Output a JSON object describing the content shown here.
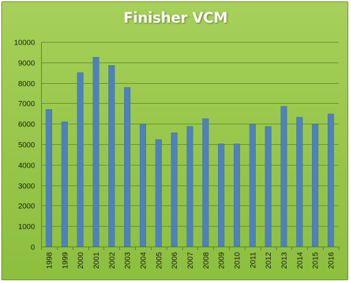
{
  "chart_data": {
    "type": "bar",
    "title": "Finisher VCM",
    "xlabel": "",
    "ylabel": "",
    "ylim": [
      0,
      10000
    ],
    "yticks": [
      0,
      1000,
      2000,
      3000,
      4000,
      5000,
      6000,
      7000,
      8000,
      9000,
      10000
    ],
    "grid": true,
    "legend": "none",
    "categories": [
      "1998",
      "1999",
      "2000",
      "2001",
      "2002",
      "2003",
      "2004",
      "2005",
      "2006",
      "2007",
      "2008",
      "2009",
      "2010",
      "2011",
      "2012",
      "2013",
      "2014",
      "2015",
      "2016"
    ],
    "values": [
      6700,
      6100,
      8500,
      9250,
      8850,
      7780,
      5980,
      5230,
      5560,
      5870,
      6250,
      5020,
      5020,
      5980,
      5870,
      6850,
      6320,
      5980,
      6480
    ],
    "colors": {
      "bar": "#4f81bd",
      "bar_edge": "#3a6aa3",
      "grid": "#6a8f2e",
      "axis": "#5f7d2c"
    }
  }
}
